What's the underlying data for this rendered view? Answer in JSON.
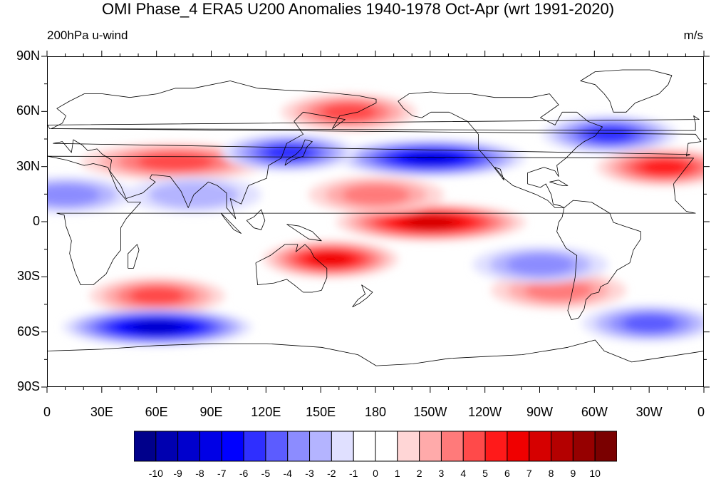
{
  "title": "OMI Phase_4 ERA5 U200 Anomalies 1940-1978 Oct-Apr (wrt 1991-2020)",
  "subtitle_left": "200hPa u-wind",
  "subtitle_right": "m/s",
  "lat_labels": [
    "90N",
    "60N",
    "30N",
    "0",
    "30S",
    "60S",
    "90S"
  ],
  "lon_labels": [
    "0",
    "30E",
    "60E",
    "90E",
    "120E",
    "150E",
    "180",
    "150W",
    "120W",
    "90W",
    "60W",
    "30W",
    "0"
  ],
  "colorbar": {
    "labels": [
      "-10",
      "-9",
      "-8",
      "-7",
      "-6",
      "-5",
      "-4",
      "-3",
      "-2",
      "-1",
      "0",
      "1",
      "2",
      "3",
      "4",
      "5",
      "6",
      "7",
      "8",
      "9",
      "10"
    ],
    "colors": [
      "#00008b",
      "#0000b0",
      "#0000cd",
      "#0000e6",
      "#0000ff",
      "#2f2fff",
      "#5c5cff",
      "#8c8cff",
      "#b4b4ff",
      "#e0e0ff",
      "#ffffff",
      "#ffffff",
      "#ffd6d6",
      "#ffaaaa",
      "#ff7a7a",
      "#ff4a4a",
      "#ff1a1a",
      "#f00000",
      "#d60000",
      "#b40000",
      "#960000",
      "#7a0000"
    ]
  },
  "anomaly_features": [
    {
      "name": "arabian-sea-jet",
      "lat": 33,
      "lon": 70,
      "value": 4
    },
    {
      "name": "arctic-siberia-positive",
      "lat": 60,
      "lon": 165,
      "value": 4
    },
    {
      "name": "north-pacific-jet-negative",
      "lat": 35,
      "lon": -150,
      "value": -7
    },
    {
      "name": "east-asia-negative",
      "lat": 38,
      "lon": 132,
      "value": -5
    },
    {
      "name": "north-atlantic-negative",
      "lat": 48,
      "lon": -52,
      "value": -5
    },
    {
      "name": "atlantic-subtropical-positive",
      "lat": 30,
      "lon": -22,
      "value": 5
    },
    {
      "name": "india-negative",
      "lat": 15,
      "lon": 80,
      "value": -2
    },
    {
      "name": "sahara-negative",
      "lat": 15,
      "lon": 10,
      "value": -3
    },
    {
      "name": "equatorial-pacific-positive",
      "lat": 0,
      "lon": -150,
      "value": 7
    },
    {
      "name": "west-pacific-positive",
      "lat": 15,
      "lon": 180,
      "value": 3
    },
    {
      "name": "north-australia-positive",
      "lat": -20,
      "lon": 155,
      "value": 6
    },
    {
      "name": "indian-ocean-positive",
      "lat": -40,
      "lon": 60,
      "value": 4
    },
    {
      "name": "southern-ocean-negative",
      "lat": -57,
      "lon": 60,
      "value": -8
    },
    {
      "name": "south-atlantic-positive",
      "lat": -37,
      "lon": -80,
      "value": 3
    },
    {
      "name": "south-pacific-negative",
      "lat": -23,
      "lon": -90,
      "value": -3
    },
    {
      "name": "drake-negative",
      "lat": -55,
      "lon": -30,
      "value": -4
    }
  ]
}
